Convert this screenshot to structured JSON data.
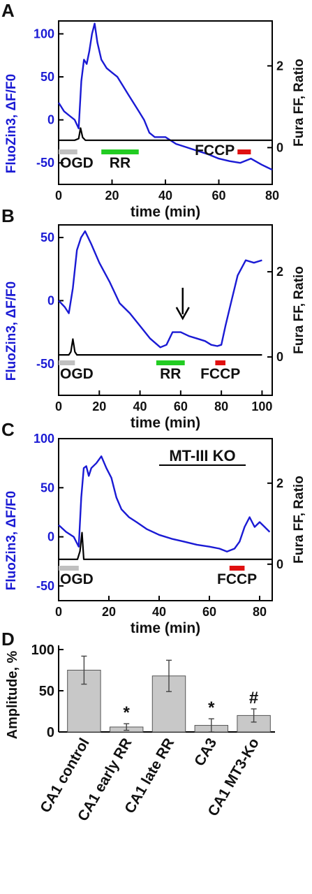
{
  "panels": [
    {
      "letter": "A",
      "annotation": "",
      "chart_data": {
        "type": "line",
        "xlabel": "time (min)",
        "ylabel": "FluoZin3, ΔF/F0",
        "y2label": "Fura FF, Ratio",
        "xlim": [
          0,
          80
        ],
        "ylim": [
          -75,
          115
        ],
        "y2lim": [
          -0.9,
          3.1
        ],
        "x_ticks": [
          "0",
          "20",
          "40",
          "60",
          "80"
        ],
        "y_ticks": [
          "-50",
          "0",
          "50",
          "100"
        ],
        "y2_ticks": [
          "0",
          "2"
        ],
        "series": [
          {
            "name": "FluoZin3",
            "color": "#1a1ad4",
            "axis": "left",
            "x": [
              0,
              2,
              4,
              6,
              7.5,
              8.5,
              9.5,
              10.5,
              11.5,
              12.5,
              13.5,
              14.5,
              16,
              18,
              20,
              22,
              24,
              26,
              28,
              30,
              32,
              34,
              36,
              40,
              44,
              48,
              52,
              56,
              60,
              64,
              68,
              72,
              76,
              80
            ],
            "y": [
              20,
              10,
              5,
              0,
              -10,
              45,
              70,
              65,
              80,
              100,
              112,
              90,
              70,
              60,
              55,
              50,
              40,
              30,
              20,
              10,
              0,
              -15,
              -20,
              -20,
              -28,
              -32,
              -36,
              -40,
              -45,
              -48,
              -50,
              -45,
              -52,
              -58
            ]
          },
          {
            "name": "Fura FF",
            "color": "#000000",
            "axis": "right",
            "x": [
              0,
              6,
              7.5,
              8.2,
              9,
              10,
              20,
              40,
              60,
              80
            ],
            "y": [
              0.18,
              0.18,
              0.22,
              0.48,
              0.25,
              0.18,
              0.18,
              0.18,
              0.18,
              0.18
            ]
          }
        ],
        "bars": [
          {
            "label": "OGD",
            "color": "#c0c0c0",
            "x_start": 0,
            "x_end": 7
          },
          {
            "label": "RR",
            "color": "#22cc22",
            "x_start": 16,
            "x_end": 30
          },
          {
            "label": "FCCP",
            "color": "#e01010",
            "x_start": 67,
            "x_end": 72
          }
        ]
      }
    },
    {
      "letter": "B",
      "annotation": "",
      "chart_data": {
        "type": "line",
        "xlabel": "time (min)",
        "ylabel": "FluoZin3, ΔF/F0",
        "y2label": "Fura FF, Ratio",
        "xlim": [
          0,
          105
        ],
        "ylim": [
          -75,
          60
        ],
        "y2lim": [
          -0.9,
          3.1
        ],
        "x_ticks": [
          "0",
          "20",
          "40",
          "60",
          "80",
          "100"
        ],
        "y_ticks": [
          "-50",
          "0",
          "50"
        ],
        "y2_ticks": [
          "0",
          "2"
        ],
        "series": [
          {
            "name": "FluoZin3",
            "color": "#1a1ad4",
            "axis": "left",
            "x": [
              0,
              3,
              5,
              7,
              9,
              11,
              13,
              16,
              20,
              25,
              30,
              35,
              40,
              45,
              50,
              53,
              56,
              60,
              64,
              68,
              72,
              75,
              78,
              80,
              82,
              85,
              88,
              92,
              96,
              100
            ],
            "y": [
              0,
              -5,
              -10,
              10,
              40,
              50,
              55,
              45,
              30,
              15,
              -2,
              -10,
              -20,
              -30,
              -37,
              -35,
              -25,
              -25,
              -28,
              -30,
              -32,
              -35,
              -36,
              -35,
              -20,
              0,
              20,
              32,
              30,
              32
            ]
          },
          {
            "name": "Fura FF",
            "color": "#000000",
            "axis": "right",
            "x": [
              0,
              5,
              6,
              7,
              8,
              9,
              20,
              50,
              80,
              100
            ],
            "y": [
              0.05,
              0.05,
              0.12,
              0.42,
              0.12,
              0.05,
              0.05,
              0.05,
              0.05,
              0.05
            ]
          }
        ],
        "bars": [
          {
            "label": "OGD",
            "color": "#c0c0c0",
            "x_start": 0,
            "x_end": 8
          },
          {
            "label": "RR",
            "color": "#22cc22",
            "x_start": 48,
            "x_end": 62
          },
          {
            "label": "FCCP",
            "color": "#e01010",
            "x_start": 77,
            "x_end": 82
          }
        ],
        "arrow_x": 61
      }
    },
    {
      "letter": "C",
      "annotation": "MT-III KO",
      "chart_data": {
        "type": "line",
        "xlabel": "time (min)",
        "ylabel": "FluoZin3, ΔF/F0",
        "y2label": "Fura FF, Ratio",
        "xlim": [
          0,
          85
        ],
        "ylim": [
          -65,
          100
        ],
        "y2lim": [
          -0.9,
          3.1
        ],
        "x_ticks": [
          "0",
          "20",
          "40",
          "60",
          "80"
        ],
        "y_ticks": [
          "-50",
          "0",
          "50",
          "100"
        ],
        "y2_ticks": [
          "0",
          "2"
        ],
        "series": [
          {
            "name": "FluoZin3",
            "color": "#1a1ad4",
            "axis": "left",
            "x": [
              0,
              3,
              6,
              8,
              9,
              10,
              11,
              12,
              13,
              15,
              17,
              19,
              21,
              23,
              25,
              28,
              31,
              35,
              40,
              45,
              50,
              55,
              60,
              64,
              67,
              70,
              72,
              74,
              76,
              78,
              80,
              82,
              84
            ],
            "y": [
              12,
              5,
              0,
              -10,
              40,
              70,
              72,
              62,
              70,
              75,
              82,
              70,
              60,
              40,
              28,
              20,
              15,
              8,
              2,
              -2,
              -5,
              -8,
              -10,
              -12,
              -15,
              -12,
              -5,
              10,
              20,
              10,
              15,
              10,
              5
            ]
          },
          {
            "name": "Fura FF",
            "color": "#000000",
            "axis": "right",
            "x": [
              0,
              7.5,
              8.5,
              9.3,
              10,
              20,
              60,
              85
            ],
            "y": [
              0.12,
              0.12,
              0.32,
              0.78,
              0.12,
              0.12,
              0.12,
              0.12
            ]
          }
        ],
        "bars": [
          {
            "label": "OGD",
            "color": "#c0c0c0",
            "x_start": 0,
            "x_end": 8
          },
          {
            "label": "FCCP",
            "color": "#e01010",
            "x_start": 68,
            "x_end": 74
          }
        ]
      }
    },
    {
      "letter": "D",
      "annotation": "",
      "chart_data": {
        "type": "bar",
        "ylabel": "Amplitude, %",
        "ylim": [
          0,
          100
        ],
        "y_ticks": [
          "0",
          "50",
          "100"
        ],
        "categories": [
          "CA1 control",
          "CA1 early RR",
          "CA1 late RR",
          "CA3",
          "CA1 MT3-Ko"
        ],
        "values": [
          75,
          6,
          68,
          8,
          20
        ],
        "errors": [
          17,
          4,
          19,
          8,
          8
        ],
        "markers": [
          "",
          "*",
          "",
          "*",
          "#"
        ],
        "bar_color": "#c8c8c8"
      }
    }
  ]
}
